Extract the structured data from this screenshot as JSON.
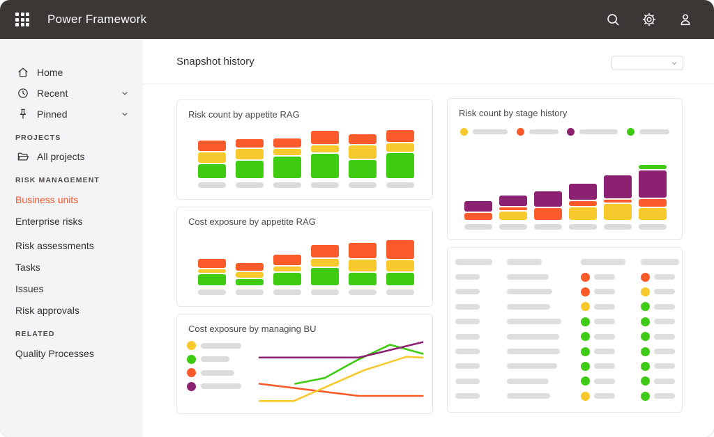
{
  "colors": {
    "header_bg": "#3A3734",
    "sidebar_bg": "#F4F4F6",
    "accent_orange": "#F4562A",
    "rag_green": "#3FCB12",
    "rag_amber": "#F7C92D",
    "rag_red": "#FB5A2B",
    "stage_purple": "#8B2170",
    "placeholder_gray": "#DCDCDC",
    "card_border": "#E7E7E7"
  },
  "header": {
    "app_title": "Power Framework",
    "icons": [
      "apps-grid-icon",
      "search-icon",
      "settings-gear-icon",
      "account-person-icon"
    ]
  },
  "sidebar": {
    "nav": [
      {
        "label": "Home",
        "icon": "home-icon",
        "expandable": false
      },
      {
        "label": "Recent",
        "icon": "clock-icon",
        "expandable": true
      },
      {
        "label": "Pinned",
        "icon": "pin-icon",
        "expandable": true
      }
    ],
    "sections": [
      {
        "title": "PROJECTS",
        "items": [
          {
            "label": "All projects",
            "icon": "folder-icon"
          }
        ]
      },
      {
        "title": "RISK MANAGEMENT",
        "items": [
          {
            "label": "Business units",
            "active": true
          },
          {
            "label": "Enterprise risks"
          },
          {
            "label": "Risk assessments"
          },
          {
            "label": "Tasks"
          },
          {
            "label": "Issues"
          },
          {
            "label": "Risk approvals"
          }
        ]
      },
      {
        "title": "RELATED",
        "items": [
          {
            "label": "Quality Processes"
          }
        ]
      }
    ]
  },
  "main": {
    "title": "Snapshot history",
    "filter": {
      "value": "",
      "placeholder": ""
    }
  },
  "chart_data": [
    {
      "type": "bar",
      "stacked": true,
      "title": "Risk count by appetite RAG",
      "categories": [
        "",
        "",
        "",
        "",
        "",
        ""
      ],
      "x_axis": "placeholder-pills",
      "y_axis": "none",
      "legend": "none",
      "series": [
        {
          "name": "green",
          "color": "#3FCB12",
          "values": [
            20,
            25,
            31,
            35,
            26,
            36
          ]
        },
        {
          "name": "amber",
          "color": "#F7C92D",
          "values": [
            15,
            15,
            9,
            10,
            19,
            12
          ]
        },
        {
          "name": "red",
          "color": "#FB5A2B",
          "values": [
            15,
            12,
            13,
            19,
            14,
            17
          ]
        }
      ]
    },
    {
      "type": "bar",
      "stacked": true,
      "title": "Cost exposure by appetite RAG",
      "categories": [
        "",
        "",
        "",
        "",
        "",
        ""
      ],
      "x_axis": "placeholder-pills",
      "y_axis": "none",
      "legend": "none",
      "series": [
        {
          "name": "green",
          "color": "#3FCB12",
          "values": [
            16,
            9,
            18,
            25,
            18,
            18
          ]
        },
        {
          "name": "amber",
          "color": "#F7C92D",
          "values": [
            5,
            8,
            7,
            11,
            17,
            16
          ]
        },
        {
          "name": "red",
          "color": "#FB5A2B",
          "values": [
            13,
            11,
            15,
            18,
            22,
            27
          ]
        }
      ]
    },
    {
      "type": "line",
      "title": "Cost exposure by managing BU",
      "legend_position": "left",
      "legend": [
        {
          "color": "#F7C92D",
          "pill_width": 58
        },
        {
          "color": "#3FCB12",
          "pill_width": 41
        },
        {
          "color": "#FB5A2B",
          "pill_width": 48
        },
        {
          "color": "#8B2170",
          "pill_width": 58
        }
      ],
      "axis_range": {
        "x": [
          0,
          100
        ],
        "y": [
          0,
          100
        ]
      },
      "series": [
        {
          "name": "red",
          "color": "#FB5A2B",
          "points": [
            [
              0,
              31
            ],
            [
              61,
              12
            ],
            [
              100,
              12
            ]
          ]
        },
        {
          "name": "amber",
          "color": "#F7C92D",
          "points": [
            [
              0,
              4
            ],
            [
              21,
              4
            ],
            [
              64,
              52
            ],
            [
              90,
              73
            ],
            [
              100,
              72
            ]
          ]
        },
        {
          "name": "green",
          "color": "#3FCB12",
          "points": [
            [
              22,
              31
            ],
            [
              40,
              40
            ],
            [
              60,
              68
            ],
            [
              80,
              92
            ],
            [
              100,
              78
            ]
          ]
        },
        {
          "name": "purple",
          "color": "#8B2170",
          "points": [
            [
              0,
              72
            ],
            [
              61,
              72
            ],
            [
              100,
              96
            ]
          ]
        }
      ]
    },
    {
      "type": "bar",
      "stacked": true,
      "title": "Risk count by stage history",
      "categories": [
        "",
        "",
        "",
        "",
        "",
        ""
      ],
      "x_axis": "placeholder-pills",
      "y_axis": "none",
      "legend": [
        {
          "color": "#F7C92D",
          "pill_width": 50
        },
        {
          "color": "#FB5A2B",
          "pill_width": 42
        },
        {
          "color": "#8B2170",
          "pill_width": 55
        },
        {
          "color": "#3FCB12",
          "pill_width": 43
        }
      ],
      "series": [
        {
          "name": "amber",
          "color": "#F7C92D",
          "values": [
            0,
            12,
            0,
            18,
            23,
            17
          ]
        },
        {
          "name": "red",
          "color": "#FB5A2B",
          "values": [
            10,
            4,
            17,
            7,
            4,
            11
          ]
        },
        {
          "name": "purple",
          "color": "#8B2170",
          "values": [
            15,
            15,
            22,
            23,
            33,
            39
          ]
        },
        {
          "name": "green",
          "color": "#3FCB12",
          "values": [
            0,
            0,
            0,
            0,
            0,
            6
          ]
        }
      ]
    },
    {
      "type": "table",
      "title": "",
      "header_pill_widths": [
        53,
        50,
        64,
        55
      ],
      "row_col1_width": 35,
      "col3_pill_width": 30,
      "col4_pill_width": 30,
      "dot_colors": {
        "red": "#FB5A2B",
        "amber": "#F6C82C",
        "green": "#3ECB17"
      },
      "rows": [
        {
          "col2_width": 60,
          "col3_dot": "red",
          "col4_dot": "red"
        },
        {
          "col2_width": 65,
          "col3_dot": "red",
          "col4_dot": "amber"
        },
        {
          "col2_width": 62,
          "col3_dot": "amber",
          "col4_dot": "green"
        },
        {
          "col2_width": 78,
          "col3_dot": "green",
          "col4_dot": "green"
        },
        {
          "col2_width": 75,
          "col3_dot": "green",
          "col4_dot": "green"
        },
        {
          "col2_width": 76,
          "col3_dot": "green",
          "col4_dot": "green"
        },
        {
          "col2_width": 72,
          "col3_dot": "green",
          "col4_dot": "green"
        },
        {
          "col2_width": 60,
          "col3_dot": "green",
          "col4_dot": "green"
        },
        {
          "col2_width": 62,
          "col3_dot": "amber",
          "col4_dot": "green"
        }
      ]
    }
  ]
}
